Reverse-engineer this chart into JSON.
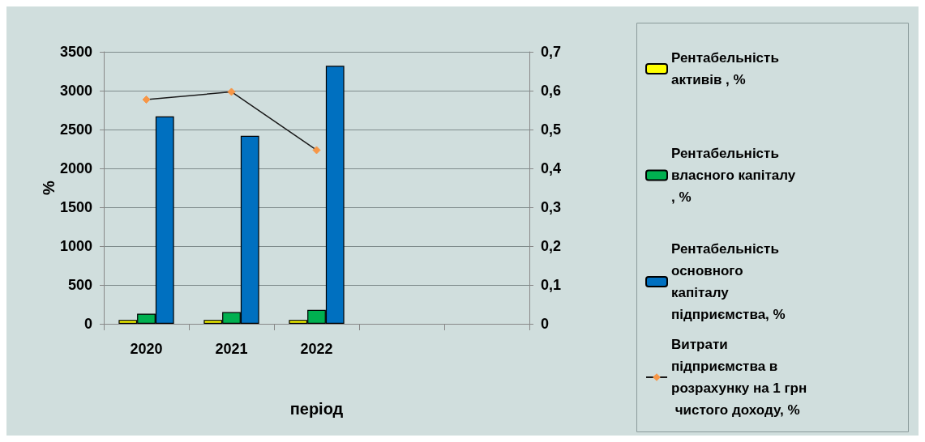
{
  "chart_data": {
    "type": "bar",
    "xlabel": "період",
    "ylabel": "%",
    "categories": [
      "2020",
      "2021",
      "2022",
      null,
      null
    ],
    "series": [
      {
        "name": "Рентабельність активів , %",
        "color": "#ffff00",
        "values": [
          50,
          50,
          50,
          null,
          null
        ]
      },
      {
        "name": "Рентабельність власного капіталу, %",
        "color": "#00b050",
        "values": [
          130,
          150,
          180,
          null,
          null
        ]
      },
      {
        "name": "Рентабельність основного капіталу підприємства, %",
        "color": "#0070c0",
        "values": [
          2670,
          2420,
          3320,
          null,
          null
        ]
      },
      {
        "name": "Витрати підприємства в розрахунку на 1 грн чистого доходу, %",
        "type": "line",
        "axis": "y2",
        "color": "#1a1a1a",
        "marker": "diamond",
        "values": [
          0.577,
          0.597,
          0.447,
          null,
          null
        ]
      }
    ],
    "ylim": [
      0,
      3500
    ],
    "yticks": [
      0,
      500,
      1000,
      1500,
      2000,
      2500,
      3000,
      3500
    ],
    "y2lim": [
      0,
      0.7
    ],
    "y2ticks": [
      {
        "value": 0,
        "label": "0"
      },
      {
        "value": 0.1,
        "label": "0,1"
      },
      {
        "value": 0.2,
        "label": "0,2"
      },
      {
        "value": 0.3,
        "label": "0,3"
      },
      {
        "value": 0.4,
        "label": "0,4"
      },
      {
        "value": 0.5,
        "label": "0,5"
      },
      {
        "value": 0.6,
        "label": "0,6"
      },
      {
        "value": 0.7,
        "label": "0,7"
      }
    ],
    "grid": "y",
    "legend": "right"
  }
}
